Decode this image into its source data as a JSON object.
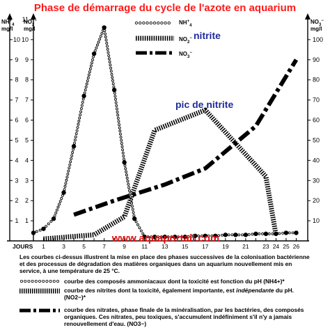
{
  "chart_data": {
    "type": "line",
    "title": "Phase de démarrage du cycle de l'azote en aquarium",
    "xlabel": "JOURS",
    "y_left_outer_label": "NH4+ mg/l",
    "y_left_inner_label": "NO2− mg/l",
    "y_right_label": "NO3− mg/l",
    "x_ticks": [
      1,
      2,
      3,
      4,
      5,
      6,
      7,
      8,
      9,
      10,
      11,
      12,
      13,
      14,
      15,
      16,
      17,
      18,
      19,
      20,
      21,
      22,
      23,
      24,
      25,
      26
    ],
    "x_tick_labels": [
      "1",
      "",
      "3",
      "",
      "5",
      "",
      "7",
      "",
      "9",
      "",
      "11",
      "",
      "13",
      "",
      "15",
      "",
      "17",
      "",
      "19",
      "",
      "21",
      "",
      "23",
      "24",
      "25",
      "26"
    ],
    "xlim": [
      0,
      27
    ],
    "y_left_ticks": [
      1,
      2,
      3,
      4,
      5,
      6,
      7,
      8,
      9,
      10
    ],
    "y_left_ticks_inner": [
      1,
      2,
      3,
      4,
      5,
      6,
      7,
      8,
      9,
      10,
      11
    ],
    "y_right_ticks": [
      10,
      20,
      30,
      40,
      50,
      60,
      70,
      80,
      90,
      100
    ],
    "ylim_left": [
      0,
      11
    ],
    "ylim_right": [
      0,
      110
    ],
    "series": [
      {
        "name": "NH4+",
        "style": "dotted-circles",
        "axis": "left",
        "x": [
          0,
          1,
          2,
          3,
          4,
          5,
          6,
          7,
          8,
          9,
          10,
          11,
          12,
          13,
          14,
          15,
          16,
          17,
          18,
          19,
          20,
          21,
          22,
          23,
          24,
          25,
          26
        ],
        "y": [
          0.4,
          0.6,
          1.1,
          2.4,
          4.7,
          7.2,
          9.3,
          10.6,
          7.5,
          3.9,
          1.1,
          0.2,
          0.2,
          0.2,
          0.2,
          0.2,
          0.25,
          0.25,
          0.25,
          0.3,
          0.3,
          0.3,
          0.35,
          0.35,
          0.35,
          0.4,
          0.4
        ]
      },
      {
        "name": "NO2−",
        "style": "hatched",
        "axis": "left",
        "x": [
          1,
          6,
          9,
          12,
          17,
          23,
          24
        ],
        "y": [
          0.1,
          0.3,
          1.2,
          5.5,
          6.5,
          3.2,
          0.3
        ]
      },
      {
        "name": "NO3−",
        "style": "dash-dot",
        "axis": "right",
        "x": [
          4,
          8,
          13,
          17,
          22,
          26
        ],
        "y": [
          13,
          20,
          28,
          36,
          57,
          90
        ]
      }
    ],
    "annotations": [
      {
        "text": "nitrite",
        "target": "legend NO2−"
      },
      {
        "text": "pic de nitrite",
        "target": "NO2− peak"
      }
    ],
    "watermark": "www.aquaportail.com",
    "grid": false,
    "legend_position": "top-center"
  },
  "legend": {
    "nh4": "NH4+",
    "no2": "NO2−",
    "no3": "NO3−"
  },
  "description": {
    "intro": "Les courbes ci-dessus illustrent la mise en place des phases successives de la colonisation bactérienne et des processus de dégradation des matières organiques dans un aquarium nouvellement mis en service, à une température de 25 °C.",
    "nh4_text": "courbe des composés ammoniacaux dont la toxicité est fonction du pH (NH4+)*",
    "no2_text_a": "courbe des nitrites dont la toxicité, également importante, est ",
    "no2_text_em": "indépendante",
    "no2_text_b": " du pH. (NO2−)*",
    "no3_text": "courbe des nitrates, phase finale de la minéralisation, par les bactéries, des composés organiques. Ces nitrates, peu toxiques, s'accumulent indéfiniment s'il n'y a jamais renouvellement d'eau. (NO3−)"
  },
  "colors": {
    "title": "#ff1a1a",
    "annotation": "#1f2b9c",
    "watermark": "#e01414",
    "line": "#000000"
  }
}
